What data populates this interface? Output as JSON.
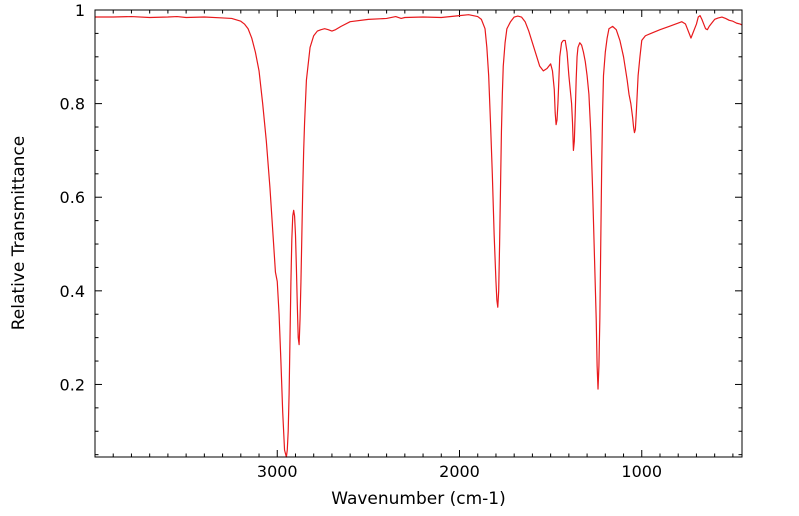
{
  "chart_data": {
    "type": "line",
    "title": "",
    "xlabel": "Wavenumber (cm-1)",
    "ylabel": "Relative Transmittance",
    "xlim": [
      4000,
      450
    ],
    "ylim": [
      0.045,
      1.0
    ],
    "x_reversed": true,
    "grid": false,
    "legend": "none",
    "x_ticks": [
      3000,
      2000,
      1000
    ],
    "x_tick_labels": [
      "3000",
      "2000",
      "1000"
    ],
    "y_ticks": [
      0.2,
      0.4,
      0.6,
      0.8,
      1.0
    ],
    "y_tick_labels": [
      "0.2",
      "0.4",
      "0.6",
      "0.8",
      "1"
    ],
    "series": [
      {
        "color": "#e8191c",
        "x": [
          4000,
          3900,
          3800,
          3700,
          3600,
          3550,
          3500,
          3400,
          3300,
          3250,
          3200,
          3180,
          3160,
          3140,
          3120,
          3100,
          3080,
          3060,
          3040,
          3020,
          3010,
          3000,
          2990,
          2980,
          2970,
          2960,
          2950,
          2945,
          2940,
          2935,
          2930,
          2925,
          2920,
          2915,
          2910,
          2905,
          2900,
          2895,
          2890,
          2885,
          2880,
          2875,
          2870,
          2865,
          2860,
          2855,
          2850,
          2840,
          2820,
          2800,
          2780,
          2760,
          2740,
          2720,
          2700,
          2680,
          2650,
          2600,
          2500,
          2400,
          2350,
          2320,
          2300,
          2200,
          2100,
          2000,
          1950,
          1900,
          1880,
          1860,
          1850,
          1840,
          1830,
          1820,
          1810,
          1800,
          1795,
          1790,
          1785,
          1780,
          1775,
          1770,
          1765,
          1760,
          1750,
          1740,
          1720,
          1700,
          1680,
          1660,
          1640,
          1620,
          1600,
          1580,
          1560,
          1540,
          1520,
          1500,
          1490,
          1480,
          1475,
          1470,
          1465,
          1460,
          1455,
          1450,
          1440,
          1430,
          1420,
          1410,
          1400,
          1390,
          1385,
          1380,
          1375,
          1370,
          1365,
          1360,
          1355,
          1350,
          1340,
          1330,
          1320,
          1310,
          1300,
          1290,
          1280,
          1270,
          1260,
          1250,
          1245,
          1240,
          1235,
          1230,
          1225,
          1220,
          1215,
          1210,
          1200,
          1190,
          1180,
          1160,
          1140,
          1120,
          1100,
          1080,
          1070,
          1060,
          1050,
          1045,
          1040,
          1035,
          1030,
          1025,
          1020,
          1010,
          1000,
          980,
          950,
          900,
          850,
          800,
          780,
          760,
          750,
          740,
          730,
          720,
          700,
          690,
          680,
          670,
          660,
          650,
          640,
          630,
          620,
          600,
          580,
          560,
          540,
          520,
          500,
          480,
          460,
          450
        ],
        "y": [
          0.985,
          0.985,
          0.986,
          0.984,
          0.985,
          0.986,
          0.984,
          0.985,
          0.983,
          0.982,
          0.976,
          0.97,
          0.96,
          0.94,
          0.91,
          0.87,
          0.8,
          0.72,
          0.62,
          0.5,
          0.44,
          0.42,
          0.35,
          0.25,
          0.14,
          0.06,
          0.045,
          0.06,
          0.1,
          0.18,
          0.3,
          0.42,
          0.51,
          0.56,
          0.572,
          0.56,
          0.52,
          0.45,
          0.37,
          0.3,
          0.285,
          0.34,
          0.42,
          0.52,
          0.62,
          0.7,
          0.76,
          0.85,
          0.92,
          0.945,
          0.955,
          0.958,
          0.96,
          0.958,
          0.955,
          0.958,
          0.965,
          0.975,
          0.98,
          0.982,
          0.986,
          0.982,
          0.984,
          0.985,
          0.984,
          0.988,
          0.99,
          0.986,
          0.98,
          0.96,
          0.92,
          0.86,
          0.76,
          0.65,
          0.52,
          0.42,
          0.38,
          0.365,
          0.4,
          0.5,
          0.62,
          0.74,
          0.82,
          0.88,
          0.93,
          0.96,
          0.975,
          0.985,
          0.987,
          0.985,
          0.975,
          0.955,
          0.93,
          0.905,
          0.88,
          0.87,
          0.875,
          0.885,
          0.87,
          0.83,
          0.78,
          0.755,
          0.765,
          0.8,
          0.85,
          0.9,
          0.93,
          0.935,
          0.935,
          0.91,
          0.86,
          0.82,
          0.8,
          0.76,
          0.7,
          0.72,
          0.78,
          0.85,
          0.9,
          0.92,
          0.93,
          0.925,
          0.91,
          0.89,
          0.86,
          0.82,
          0.74,
          0.62,
          0.48,
          0.34,
          0.24,
          0.19,
          0.24,
          0.34,
          0.5,
          0.66,
          0.78,
          0.86,
          0.91,
          0.94,
          0.96,
          0.965,
          0.958,
          0.935,
          0.9,
          0.85,
          0.82,
          0.8,
          0.77,
          0.75,
          0.738,
          0.745,
          0.78,
          0.82,
          0.86,
          0.9,
          0.935,
          0.945,
          0.95,
          0.958,
          0.965,
          0.972,
          0.975,
          0.97,
          0.96,
          0.95,
          0.94,
          0.95,
          0.97,
          0.985,
          0.988,
          0.98,
          0.97,
          0.96,
          0.958,
          0.965,
          0.97,
          0.98,
          0.983,
          0.985,
          0.982,
          0.978,
          0.976,
          0.972,
          0.97,
          0.968
        ]
      }
    ]
  }
}
